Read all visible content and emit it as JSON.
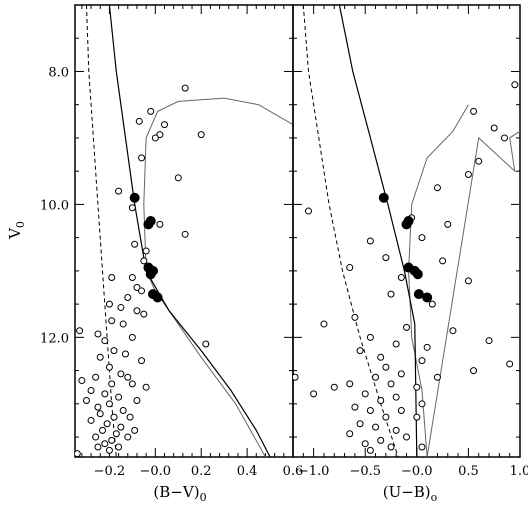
{
  "chart_data": [
    {
      "type": "scatter",
      "panel": "left",
      "xlabel": "(B−V)",
      "xlabel_sub": "0",
      "ylabel": "V",
      "ylabel_sub": "0",
      "xlim": [
        -0.35,
        0.6
      ],
      "ylim": [
        13.8,
        7.0
      ],
      "xticks": [
        -0.2,
        0.0,
        0.2,
        0.4,
        0.6
      ],
      "xtick_labels": [
        "−0.2",
        "−0.0",
        "0.2",
        "0.4",
        "0.6"
      ],
      "yticks": [
        8.0,
        10.0,
        12.0
      ],
      "ytick_labels": [
        "8.0",
        "10.0",
        "12.0"
      ],
      "filled_points": [
        [
          -0.09,
          9.9
        ],
        [
          -0.03,
          10.3
        ],
        [
          -0.02,
          10.25
        ],
        [
          -0.03,
          10.95
        ],
        [
          -0.01,
          11.0
        ],
        [
          -0.02,
          11.05
        ],
        [
          -0.01,
          11.35
        ],
        [
          0.01,
          11.4
        ]
      ],
      "open_points": [
        [
          0.13,
          8.25
        ],
        [
          -0.02,
          8.6
        ],
        [
          -0.07,
          8.75
        ],
        [
          0.04,
          8.8
        ],
        [
          0.02,
          8.95
        ],
        [
          0.2,
          8.95
        ],
        [
          0.0,
          9.0
        ],
        [
          -0.06,
          9.3
        ],
        [
          0.1,
          9.6
        ],
        [
          -0.16,
          9.8
        ],
        [
          -0.1,
          10.05
        ],
        [
          0.02,
          10.3
        ],
        [
          0.13,
          10.45
        ],
        [
          -0.09,
          10.6
        ],
        [
          -0.04,
          10.7
        ],
        [
          -0.05,
          10.85
        ],
        [
          -0.19,
          11.1
        ],
        [
          -0.1,
          11.1
        ],
        [
          -0.08,
          11.25
        ],
        [
          -0.06,
          11.3
        ],
        [
          -0.12,
          11.4
        ],
        [
          -0.2,
          11.5
        ],
        [
          -0.15,
          11.55
        ],
        [
          -0.08,
          11.6
        ],
        [
          -0.05,
          11.65
        ],
        [
          -0.19,
          11.75
        ],
        [
          -0.14,
          11.8
        ],
        [
          -0.33,
          11.9
        ],
        [
          -0.25,
          11.95
        ],
        [
          -0.22,
          12.05
        ],
        [
          -0.1,
          12.0
        ],
        [
          0.22,
          12.1
        ],
        [
          -0.18,
          12.2
        ],
        [
          -0.13,
          12.25
        ],
        [
          -0.24,
          12.3
        ],
        [
          -0.06,
          12.35
        ],
        [
          -0.2,
          12.45
        ],
        [
          -0.15,
          12.55
        ],
        [
          -0.26,
          12.6
        ],
        [
          -0.12,
          12.6
        ],
        [
          -0.32,
          12.65
        ],
        [
          -0.19,
          12.7
        ],
        [
          -0.1,
          12.7
        ],
        [
          -0.04,
          12.75
        ],
        [
          -0.28,
          12.8
        ],
        [
          -0.22,
          12.85
        ],
        [
          -0.16,
          12.9
        ],
        [
          -0.3,
          12.95
        ],
        [
          -0.08,
          12.95
        ],
        [
          -0.2,
          13.0
        ],
        [
          -0.25,
          13.05
        ],
        [
          -0.14,
          13.1
        ],
        [
          -0.24,
          13.15
        ],
        [
          -0.18,
          13.2
        ],
        [
          -0.11,
          13.2
        ],
        [
          -0.28,
          13.25
        ],
        [
          -0.21,
          13.3
        ],
        [
          -0.15,
          13.35
        ],
        [
          -0.23,
          13.4
        ],
        [
          -0.17,
          13.45
        ],
        [
          -0.26,
          13.5
        ],
        [
          -0.19,
          13.55
        ],
        [
          -0.12,
          13.5
        ],
        [
          -0.22,
          13.6
        ],
        [
          -0.25,
          13.65
        ],
        [
          -0.16,
          13.65
        ],
        [
          -0.2,
          13.7
        ],
        [
          -0.09,
          13.4
        ],
        [
          -0.34,
          13.75
        ]
      ],
      "isochrone_dashed": [
        [
          -0.3,
          7.0
        ],
        [
          -0.29,
          8.0
        ],
        [
          -0.27,
          9.0
        ],
        [
          -0.25,
          10.0
        ],
        [
          -0.23,
          11.0
        ],
        [
          -0.21,
          12.0
        ],
        [
          -0.19,
          13.0
        ],
        [
          -0.17,
          13.8
        ]
      ],
      "isochrone_solid": [
        [
          -0.2,
          7.0
        ],
        [
          -0.17,
          8.0
        ],
        [
          -0.13,
          9.0
        ],
        [
          -0.09,
          10.0
        ],
        [
          -0.04,
          11.0
        ],
        [
          0.06,
          11.6
        ],
        [
          0.2,
          12.2
        ],
        [
          0.33,
          12.8
        ],
        [
          0.44,
          13.4
        ],
        [
          0.5,
          13.8
        ]
      ],
      "isochrone_gray": [
        [
          0.6,
          8.8
        ],
        [
          0.45,
          8.5
        ],
        [
          0.3,
          8.4
        ],
        [
          0.1,
          8.45
        ],
        [
          0.01,
          8.6
        ],
        [
          -0.04,
          9.0
        ],
        [
          -0.05,
          10.0
        ],
        [
          -0.04,
          11.0
        ],
        [
          0.0,
          11.3
        ],
        [
          0.06,
          11.6
        ],
        [
          0.2,
          12.3
        ],
        [
          0.35,
          13.0
        ],
        [
          0.48,
          13.8
        ]
      ]
    },
    {
      "type": "scatter",
      "panel": "right",
      "xlabel": "(U−B)",
      "xlabel_sub": "o",
      "xlim": [
        -1.2,
        1.0
      ],
      "ylim": [
        13.8,
        7.0
      ],
      "xticks": [
        -1.0,
        -0.5,
        0.0,
        0.5,
        1.0
      ],
      "xtick_labels": [
        "−1.0",
        "−0.5",
        "−0.0",
        "0.5",
        "1.0"
      ],
      "filled_points": [
        [
          -0.32,
          9.9
        ],
        [
          -0.1,
          10.3
        ],
        [
          -0.08,
          10.25
        ],
        [
          -0.08,
          10.95
        ],
        [
          -0.02,
          11.0
        ],
        [
          0.01,
          11.05
        ],
        [
          0.02,
          11.35
        ],
        [
          0.1,
          11.4
        ]
      ],
      "open_points": [
        [
          0.95,
          8.2
        ],
        [
          0.55,
          8.6
        ],
        [
          0.75,
          8.85
        ],
        [
          0.85,
          9.0
        ],
        [
          0.6,
          9.35
        ],
        [
          0.5,
          9.55
        ],
        [
          0.2,
          9.75
        ],
        [
          -1.05,
          10.1
        ],
        [
          -0.05,
          10.2
        ],
        [
          0.3,
          10.3
        ],
        [
          0.05,
          10.5
        ],
        [
          -0.45,
          10.55
        ],
        [
          -0.3,
          10.8
        ],
        [
          0.25,
          10.85
        ],
        [
          -0.65,
          10.95
        ],
        [
          -0.15,
          11.1
        ],
        [
          0.5,
          11.15
        ],
        [
          -0.25,
          11.35
        ],
        [
          0.15,
          11.5
        ],
        [
          -0.9,
          11.8
        ],
        [
          -0.6,
          11.7
        ],
        [
          -0.1,
          11.85
        ],
        [
          0.35,
          11.9
        ],
        [
          -0.45,
          12.0
        ],
        [
          0.7,
          12.05
        ],
        [
          -0.2,
          12.1
        ],
        [
          0.1,
          12.15
        ],
        [
          -0.55,
          12.2
        ],
        [
          -0.35,
          12.3
        ],
        [
          0.05,
          12.35
        ],
        [
          0.9,
          12.4
        ],
        [
          -0.3,
          12.45
        ],
        [
          0.55,
          12.5
        ],
        [
          -0.15,
          12.55
        ],
        [
          -0.4,
          12.6
        ],
        [
          0.2,
          12.6
        ],
        [
          -0.65,
          12.7
        ],
        [
          -0.25,
          12.7
        ],
        [
          0.0,
          12.75
        ],
        [
          -1.0,
          12.85
        ],
        [
          -0.5,
          12.85
        ],
        [
          -0.2,
          12.9
        ],
        [
          -0.35,
          12.95
        ],
        [
          0.05,
          13.0
        ],
        [
          -0.6,
          13.05
        ],
        [
          -0.45,
          13.1
        ],
        [
          -0.15,
          13.1
        ],
        [
          -0.3,
          13.2
        ],
        [
          0.0,
          13.2
        ],
        [
          -0.55,
          13.3
        ],
        [
          -0.4,
          13.35
        ],
        [
          -0.2,
          13.4
        ],
        [
          -0.65,
          13.45
        ],
        [
          -0.1,
          13.5
        ],
        [
          -0.35,
          13.55
        ],
        [
          -0.5,
          13.6
        ],
        [
          -0.25,
          13.65
        ],
        [
          0.05,
          13.65
        ],
        [
          -0.45,
          13.7
        ],
        [
          -1.18,
          12.6
        ],
        [
          -0.8,
          12.75
        ]
      ],
      "isochrone_dashed": [
        [
          -1.1,
          7.0
        ],
        [
          -1.05,
          8.0
        ],
        [
          -0.95,
          9.0
        ],
        [
          -0.85,
          10.0
        ],
        [
          -0.72,
          11.0
        ],
        [
          -0.55,
          12.0
        ],
        [
          -0.35,
          13.0
        ],
        [
          -0.18,
          13.8
        ]
      ],
      "isochrone_solid": [
        [
          -0.75,
          7.0
        ],
        [
          -0.62,
          8.0
        ],
        [
          -0.45,
          9.0
        ],
        [
          -0.28,
          10.0
        ],
        [
          -0.12,
          11.0
        ],
        [
          -0.02,
          11.8
        ],
        [
          0.0,
          13.8
        ]
      ],
      "isochrone_gray": [
        [
          0.5,
          8.5
        ],
        [
          0.35,
          8.9
        ],
        [
          0.1,
          9.3
        ],
        [
          -0.05,
          10.0
        ],
        [
          -0.08,
          11.0
        ],
        [
          -0.05,
          12.0
        ],
        [
          0.05,
          12.8
        ],
        [
          0.1,
          13.8
        ],
        [
          0.6,
          9.0
        ],
        [
          0.95,
          9.5
        ],
        [
          0.9,
          9.0
        ],
        [
          1.0,
          8.9
        ]
      ]
    }
  ]
}
